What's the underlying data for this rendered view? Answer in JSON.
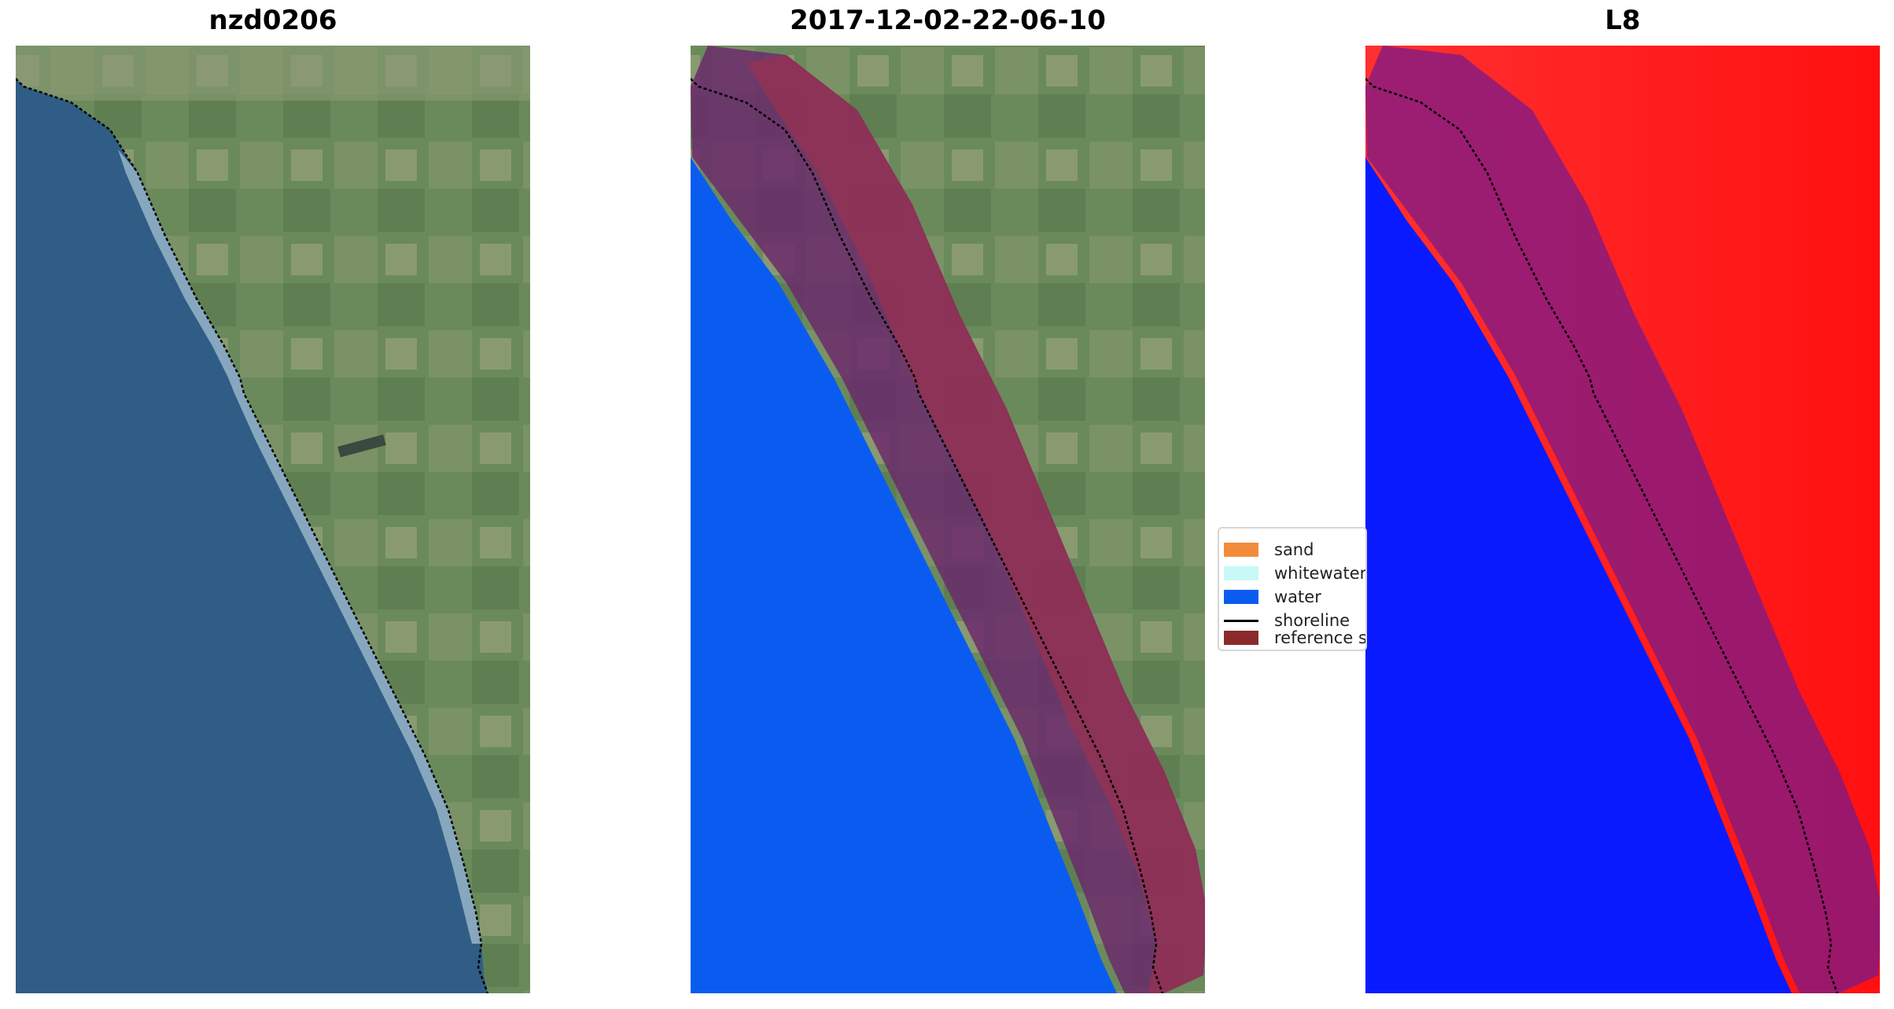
{
  "panels": [
    {
      "title": "nzd0206"
    },
    {
      "title": "2017-12-02-22-06-10"
    },
    {
      "title": "L8"
    }
  ],
  "legend": {
    "items": [
      {
        "label": "sand",
        "color": "#f28c3c",
        "kind": "patch"
      },
      {
        "label": "whitewater",
        "color": "#c8f8f8",
        "kind": "patch"
      },
      {
        "label": "water",
        "color": "#0a5cf0",
        "kind": "patch"
      },
      {
        "label": "shoreline",
        "color": "#000000",
        "kind": "line"
      },
      {
        "label": "reference shoreline buffer",
        "color": "#8b2a2a",
        "kind": "patch"
      }
    ]
  },
  "colors": {
    "land": "#6e8a5a",
    "ocean": "#2e5e86",
    "water_class": "#0a5cf0",
    "buffer": "#6b2a6b",
    "buffer_land": "#9a3050",
    "mndwi_land": "#ff1e1e",
    "mndwi_water": "#0a1aff"
  }
}
